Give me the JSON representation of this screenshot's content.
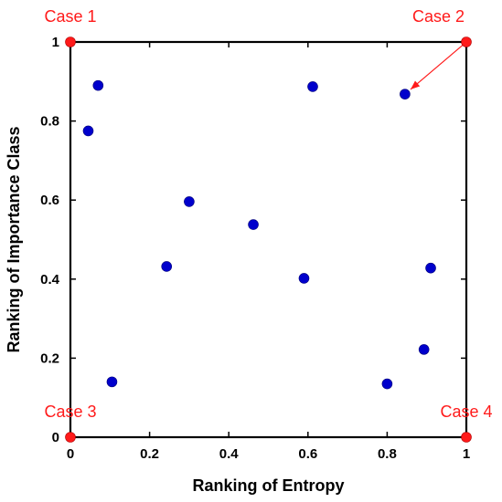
{
  "chart_data": {
    "type": "scatter",
    "title": "",
    "xlabel": "Ranking of Entropy",
    "ylabel": "Ranking of Importance Class",
    "xlim": [
      0,
      1
    ],
    "ylim": [
      0,
      1
    ],
    "xticks": [
      0,
      0.2,
      0.4,
      0.6,
      0.8,
      1
    ],
    "yticks": [
      0,
      0.2,
      0.4,
      0.6,
      0.8,
      1
    ],
    "xtick_labels": [
      "0",
      "0.2",
      "0.4",
      "0.6",
      "0.8",
      "1"
    ],
    "ytick_labels": [
      "0",
      "0.2",
      "0.4",
      "0.6",
      "0.8",
      "1"
    ],
    "grid": false,
    "series": [
      {
        "color": "#0000cc",
        "points": [
          [
            0.07,
            0.89
          ],
          [
            0.045,
            0.775
          ],
          [
            0.105,
            0.14
          ],
          [
            0.243,
            0.432
          ],
          [
            0.3,
            0.596
          ],
          [
            0.462,
            0.538
          ],
          [
            0.59,
            0.402
          ],
          [
            0.612,
            0.887
          ],
          [
            0.8,
            0.135
          ],
          [
            0.845,
            0.868
          ],
          [
            0.893,
            0.222
          ],
          [
            0.91,
            0.428
          ]
        ]
      },
      {
        "color": "#ff1a1a",
        "points": [
          [
            0,
            1
          ],
          [
            1,
            1
          ],
          [
            0,
            0
          ],
          [
            1,
            0
          ]
        ]
      }
    ],
    "annotations": [
      {
        "text": "Case 1",
        "x": 0,
        "y": 1,
        "placement": "above"
      },
      {
        "text": "Case 2",
        "x": 1,
        "y": 1,
        "placement": "above-left"
      },
      {
        "text": "Case 3",
        "x": 0,
        "y": 0,
        "placement": "above"
      },
      {
        "text": "Case 4",
        "x": 1,
        "y": 0,
        "placement": "above"
      }
    ],
    "arrow": {
      "from": [
        1,
        1
      ],
      "to": [
        0.845,
        0.868
      ],
      "color": "#ff1a1a"
    }
  }
}
